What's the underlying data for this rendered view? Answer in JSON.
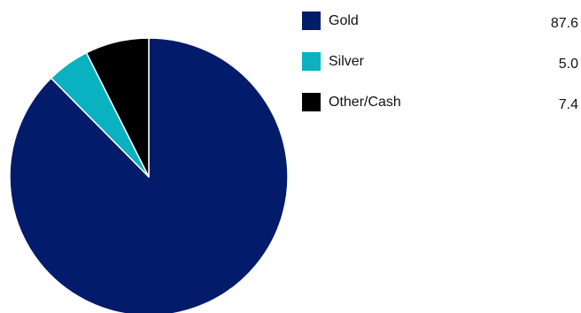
{
  "chart_data": {
    "type": "pie",
    "title": "",
    "series": [
      {
        "name": "Gold",
        "value": 87.6,
        "color": "#021b6b"
      },
      {
        "name": "Silver",
        "value": 5.0,
        "color": "#0ab1c0"
      },
      {
        "name": "Other/Cash",
        "value": 7.4,
        "color": "#000000"
      }
    ],
    "value_labels": [
      "87.6",
      "5.0",
      "7.4"
    ],
    "slice_border_color": "#ffffff",
    "legend_position": "right"
  }
}
